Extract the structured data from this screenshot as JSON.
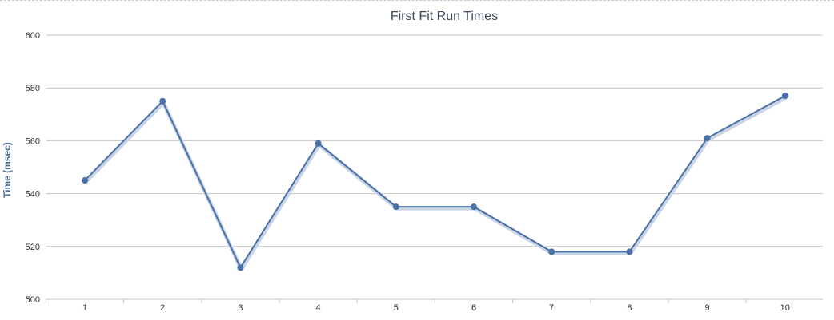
{
  "chart_data": {
    "type": "line",
    "title": "First Fit Run Times",
    "xlabel": "",
    "ylabel": "Time (msec)",
    "categories": [
      "1",
      "2",
      "3",
      "4",
      "5",
      "6",
      "7",
      "8",
      "9",
      "10"
    ],
    "series": [
      {
        "values": [
          545,
          575,
          512,
          559,
          535,
          535,
          518,
          518,
          561,
          577
        ]
      }
    ],
    "ylim": [
      500,
      600
    ],
    "yticks": [
      "500",
      "520",
      "540",
      "560",
      "580",
      "600"
    ],
    "grid": true,
    "line_color": "#4a70a8",
    "marker_color": "#4a70a8"
  }
}
